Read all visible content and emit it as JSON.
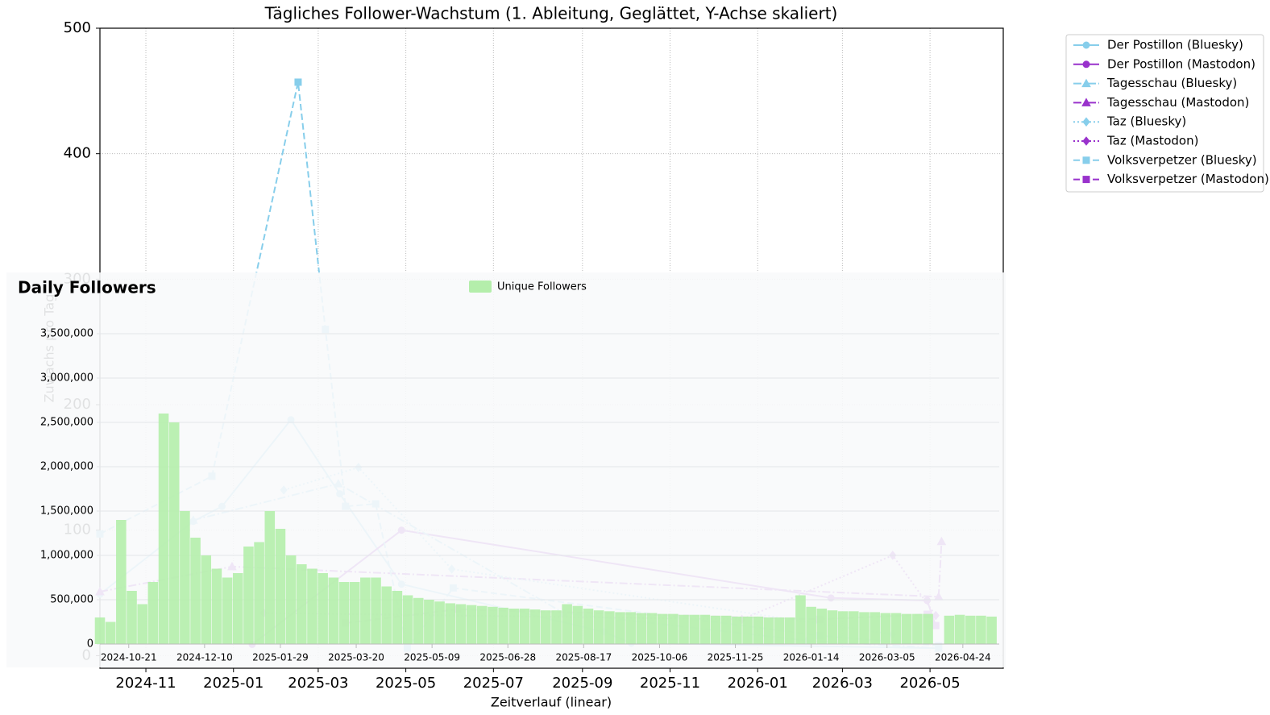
{
  "chart_data": [
    {
      "type": "line",
      "title": "Tägliches Follower-Wachstum (1. Ableitung, Geglättet, Y-Achse skaliert)",
      "x_label": "Zeitverlauf (linear)",
      "y_label": "Zuwachs pro Tag",
      "xlim": [
        "2024-09-30",
        "2026-06-21"
      ],
      "xticks": [
        "2024-11",
        "2025-01",
        "2025-03",
        "2025-05",
        "2025-07",
        "2025-09",
        "2025-11",
        "2026-01",
        "2026-03",
        "2026-05"
      ],
      "ylim": [
        -10,
        500
      ],
      "yticks": [
        0,
        100,
        200,
        300,
        400,
        500
      ],
      "grid": true,
      "legend": "outside upper right",
      "series": [
        {
          "name": "Der Postillon (Bluesky)",
          "color": "#87ceeb",
          "marker": "circle",
          "linestyle": "solid",
          "x": [
            "2024-09-30",
            "2024-12-04",
            "2024-12-24",
            "2025-02-10",
            "2025-03-16",
            "2025-04-28",
            "2025-09-16",
            "2025-10-05",
            "2026-05-07"
          ],
          "values": [
            49,
            107,
            119,
            188,
            129,
            57,
            19,
            10,
            6
          ]
        },
        {
          "name": "Der Postillon (Mastodon)",
          "color": "#9932cc",
          "marker": "circle",
          "linestyle": "solid",
          "x": [
            "2025-01-14",
            "2025-04-28",
            "2026-02-21",
            "2026-04-29",
            "2026-05-05"
          ],
          "values": [
            9,
            100,
            46,
            44,
            24
          ]
        },
        {
          "name": "Tagesschau (Bluesky)",
          "color": "#87ceeb",
          "marker": "triangle",
          "linestyle": "dashdot",
          "x": [
            "2024-12-04",
            "2025-03-15",
            "2025-08-19",
            "2026-02-04",
            "2026-05-07"
          ],
          "values": [
            108,
            137,
            34,
            12,
            6
          ]
        },
        {
          "name": "Tagesschau (Mastodon)",
          "color": "#9932cc",
          "marker": "triangle",
          "linestyle": "dashdot",
          "x": [
            "2024-09-30",
            "2024-12-31",
            "2026-05-07",
            "2026-05-09"
          ],
          "values": [
            51,
            71,
            47,
            91
          ]
        },
        {
          "name": "Taz (Bluesky)",
          "color": "#87ceeb",
          "marker": "diamond",
          "linestyle": "dotted",
          "x": [
            "2025-02-05",
            "2025-03-29",
            "2025-06-02",
            "2026-04-05"
          ],
          "values": [
            132,
            150,
            69,
            17
          ]
        },
        {
          "name": "Taz (Mastodon)",
          "color": "#9932cc",
          "marker": "diamond",
          "linestyle": "dotted",
          "x": [
            "2025-01-22",
            "2025-12-21",
            "2026-04-05",
            "2026-05-05"
          ],
          "values": [
            34,
            29,
            80,
            32
          ]
        },
        {
          "name": "Volksverpetzer (Bluesky)",
          "color": "#87ceeb",
          "marker": "square",
          "linestyle": "dashed",
          "x": [
            "2024-09-30",
            "2024-12-17",
            "2025-02-15",
            "2025-03-06",
            "2025-03-20",
            "2025-04-10",
            "2025-05-02",
            "2025-06-03",
            "2026-02-13",
            "2026-05-07"
          ],
          "values": [
            97,
            143,
            457,
            260,
            119,
            121,
            6,
            54,
            16,
            8
          ]
        },
        {
          "name": "Volksverpetzer (Mastodon)",
          "color": "#9932cc",
          "marker": "square",
          "linestyle": "dashed",
          "x": [
            "2025-03-20",
            "2025-06-06",
            "2026-02-13",
            "2026-04-29",
            "2026-05-05"
          ],
          "values": [
            26,
            37,
            29,
            33,
            24
          ]
        }
      ]
    },
    {
      "type": "bar",
      "title": "Daily Followers",
      "xlim": [
        "2024-10-02",
        "2026-05-18"
      ],
      "xticks": [
        "2024-10-21",
        "2024-12-10",
        "2025-01-29",
        "2025-03-20",
        "2025-05-09",
        "2025-06-28",
        "2025-08-17",
        "2025-10-06",
        "2025-11-25",
        "2026-01-14",
        "2026-03-05",
        "2026-04-24"
      ],
      "ylim": [
        0,
        3800000
      ],
      "yticks": [
        0,
        {
          "value": 500000,
          "label": "500,000"
        },
        {
          "value": 1000000,
          "label": "1,000,000"
        },
        {
          "value": 1500000,
          "label": "1,500,000"
        },
        {
          "value": 2000000,
          "label": "2,000,000"
        },
        {
          "value": 2500000,
          "label": "2,500,000"
        },
        {
          "value": 3000000,
          "label": "3,000,000"
        },
        {
          "value": 3500000,
          "label": "3,500,000"
        }
      ],
      "grid": true,
      "legend": "top center",
      "series": [
        {
          "name": "Unique Followers",
          "color": "#b4eeab",
          "x": [
            "2024-10-02",
            "2024-10-09",
            "2024-10-16",
            "2024-10-23",
            "2024-10-30",
            "2024-11-06",
            "2024-11-13",
            "2024-11-20",
            "2024-11-27",
            "2024-12-04",
            "2024-12-11",
            "2024-12-18",
            "2024-12-25",
            "2025-01-01",
            "2025-01-08",
            "2025-01-15",
            "2025-01-22",
            "2025-01-29",
            "2025-02-05",
            "2025-02-12",
            "2025-02-19",
            "2025-02-26",
            "2025-03-05",
            "2025-03-12",
            "2025-03-19",
            "2025-03-26",
            "2025-04-02",
            "2025-04-09",
            "2025-04-16",
            "2025-04-23",
            "2025-04-30",
            "2025-05-07",
            "2025-05-14",
            "2025-05-21",
            "2025-05-28",
            "2025-06-04",
            "2025-06-11",
            "2025-06-18",
            "2025-06-25",
            "2025-07-02",
            "2025-07-09",
            "2025-07-16",
            "2025-07-23",
            "2025-07-30",
            "2025-08-06",
            "2025-08-13",
            "2025-08-20",
            "2025-08-27",
            "2025-09-03",
            "2025-09-10",
            "2025-09-17",
            "2025-09-24",
            "2025-10-01",
            "2025-10-08",
            "2025-10-15",
            "2025-10-22",
            "2025-10-29",
            "2025-11-05",
            "2025-11-12",
            "2025-11-19",
            "2025-11-26",
            "2025-12-03",
            "2025-12-10",
            "2025-12-17",
            "2025-12-24",
            "2025-12-31",
            "2026-01-07",
            "2026-01-14",
            "2026-01-21",
            "2026-01-28",
            "2026-02-04",
            "2026-02-11",
            "2026-02-18",
            "2026-02-25",
            "2026-03-04",
            "2026-03-11",
            "2026-03-18",
            "2026-03-25",
            "2026-04-01",
            "2026-04-08",
            "2026-04-15",
            "2026-04-22",
            "2026-04-29",
            "2026-05-06",
            "2026-05-13"
          ],
          "values": [
            300000,
            250000,
            1400000,
            600000,
            450000,
            700000,
            2600000,
            2500000,
            1500000,
            1200000,
            1000000,
            850000,
            750000,
            800000,
            1100000,
            1150000,
            1500000,
            1300000,
            1000000,
            900000,
            850000,
            800000,
            750000,
            700000,
            700000,
            750000,
            750000,
            650000,
            600000,
            550000,
            520000,
            500000,
            480000,
            460000,
            450000,
            440000,
            430000,
            420000,
            410000,
            400000,
            400000,
            390000,
            380000,
            380000,
            450000,
            430000,
            400000,
            380000,
            370000,
            360000,
            360000,
            350000,
            350000,
            340000,
            340000,
            330000,
            330000,
            330000,
            320000,
            320000,
            310000,
            310000,
            310000,
            300000,
            300000,
            300000,
            550000,
            420000,
            400000,
            380000,
            370000,
            370000,
            360000,
            360000,
            350000,
            350000,
            340000,
            340000,
            340000,
            null,
            320000,
            330000,
            320000,
            320000,
            310000
          ]
        }
      ]
    }
  ]
}
